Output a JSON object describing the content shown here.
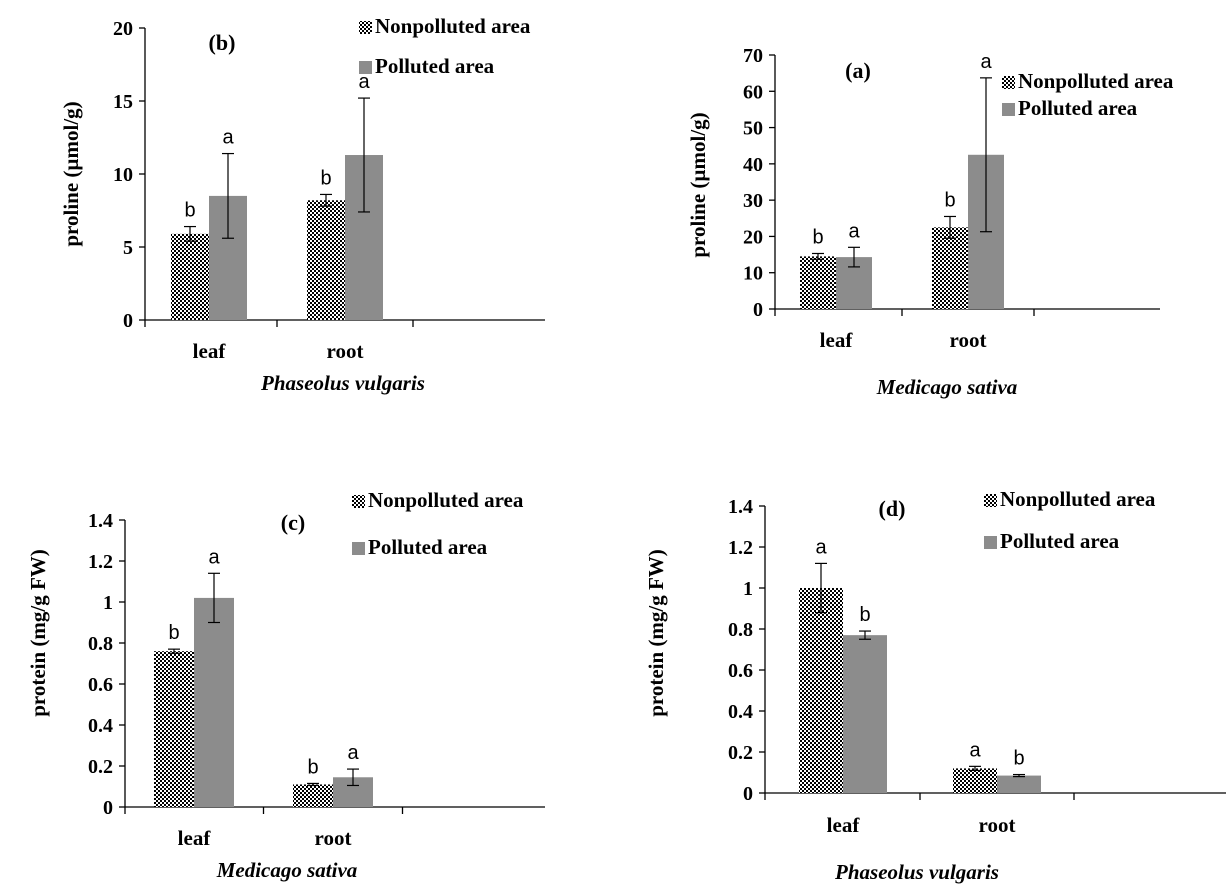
{
  "colors": {
    "nonpolluted_base": "#ffffff",
    "nonpolluted_dots": "#000000",
    "polluted": "#8c8c8c",
    "errorbar": "#000000"
  },
  "chart_data": [
    {
      "id": "b",
      "type": "bar",
      "panel_tag": "(b)",
      "ylabel": "proline (µmol/g)",
      "xlabel": "Phaseolus vulgaris",
      "ylim": [
        0,
        20
      ],
      "yticks": [
        "0",
        "5",
        "10",
        "15",
        "20"
      ],
      "categories": [
        "leaf",
        "root"
      ],
      "legend_position": "top-right",
      "series": [
        {
          "name": "Nonpolluted area",
          "values": [
            5.9,
            8.2
          ],
          "errors": [
            0.5,
            0.4
          ],
          "sig": [
            "b",
            "b"
          ]
        },
        {
          "name": "Polluted area",
          "values": [
            8.5,
            11.3
          ],
          "errors": [
            2.9,
            3.9
          ],
          "sig": [
            "a",
            "a"
          ]
        }
      ]
    },
    {
      "id": "a",
      "type": "bar",
      "panel_tag": "(a)",
      "ylabel": "proline (µmol/g)",
      "xlabel": "Medicago sativa",
      "ylim": [
        0,
        70
      ],
      "yticks": [
        "0",
        "10",
        "20",
        "30",
        "40",
        "50",
        "60",
        "70"
      ],
      "categories": [
        "leaf",
        "root"
      ],
      "legend_position": "top-right",
      "series": [
        {
          "name": "Nonpolluted area",
          "values": [
            14.5,
            22.5
          ],
          "errors": [
            0.8,
            3.0
          ],
          "sig": [
            "b",
            "b"
          ]
        },
        {
          "name": "Polluted area",
          "values": [
            14.3,
            42.5
          ],
          "errors": [
            2.7,
            21.2
          ],
          "sig": [
            "a",
            "a"
          ]
        }
      ]
    },
    {
      "id": "c",
      "type": "bar",
      "panel_tag": "(c)",
      "ylabel": "protein (mg/g FW)",
      "xlabel": "Medicago sativa",
      "ylim": [
        0,
        1.4
      ],
      "yticks": [
        "0",
        "0.2",
        "0.4",
        "0.6",
        "0.8",
        "1",
        "1.2",
        "1.4"
      ],
      "categories": [
        "leaf",
        "root"
      ],
      "legend_position": "top-right",
      "series": [
        {
          "name": "Nonpolluted area",
          "values": [
            0.76,
            0.11
          ],
          "errors": [
            0.01,
            0.005
          ],
          "sig": [
            "b",
            "b"
          ]
        },
        {
          "name": "Polluted area",
          "values": [
            1.02,
            0.145
          ],
          "errors": [
            0.12,
            0.04
          ],
          "sig": [
            "a",
            "a"
          ]
        }
      ]
    },
    {
      "id": "d",
      "type": "bar",
      "panel_tag": "(d)",
      "ylabel": "protein (mg/g FW)",
      "xlabel": "Phaseolus vulgaris",
      "ylim": [
        0,
        1.4
      ],
      "yticks": [
        "0",
        "0.2",
        "0.4",
        "0.6",
        "0.8",
        "1",
        "1.2",
        "1.4"
      ],
      "categories": [
        "leaf",
        "root"
      ],
      "legend_position": "top-right",
      "series": [
        {
          "name": "Nonpolluted area",
          "values": [
            1.0,
            0.12
          ],
          "errors": [
            0.12,
            0.01
          ],
          "sig": [
            "a",
            "a"
          ]
        },
        {
          "name": "Polluted area",
          "values": [
            0.77,
            0.085
          ],
          "errors": [
            0.02,
            0.005
          ],
          "sig": [
            "b",
            "b"
          ]
        }
      ]
    }
  ]
}
